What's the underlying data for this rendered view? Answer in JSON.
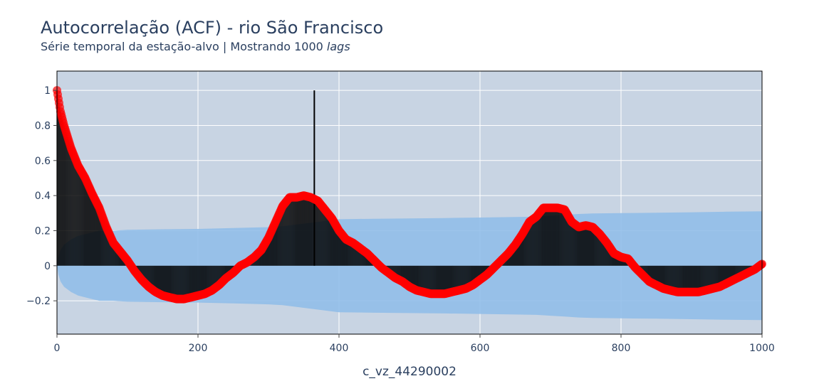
{
  "title": "Autocorrelação (ACF) - rio São Francisco",
  "subtitle_main": "Série temporal da estação-alvo | Mostrando 1000 ",
  "subtitle_italic": "lags",
  "chart_data": {
    "type": "line",
    "title": "Autocorrelação (ACF) - rio São Francisco",
    "subtitle": "Série temporal da estação-alvo | Mostrando 1000 lags",
    "xlabel": "c_vz_44290002",
    "ylabel": "",
    "xlim": [
      0,
      1000
    ],
    "ylim": [
      -0.39,
      1.11
    ],
    "grid": true,
    "legend": "none",
    "x_ticks": [
      0,
      200,
      400,
      600,
      800,
      1000
    ],
    "x_tick_labels": [
      "0",
      "200",
      "400",
      "600",
      "800",
      "1000"
    ],
    "y_ticks": [
      -0.2,
      0,
      0.2,
      0.4,
      0.6,
      0.8,
      1
    ],
    "y_tick_labels": [
      "−0.2",
      "0",
      "0.2",
      "0.4",
      "0.6",
      "0.8",
      "1"
    ],
    "colors": {
      "plot_bg": "#c8d4e3",
      "grid": "#ffffff",
      "acf_points": "#ff0000",
      "stems": "#000000",
      "confidence_band": "#8fbde8",
      "text": "#2a3f5f"
    },
    "series": [
      {
        "kind": "acf",
        "x": [
          0,
          5,
          10,
          20,
          30,
          40,
          50,
          60,
          70,
          80,
          90,
          100,
          110,
          120,
          130,
          140,
          150,
          160,
          170,
          180,
          190,
          200,
          210,
          220,
          230,
          240,
          250,
          260,
          270,
          280,
          290,
          300,
          310,
          320,
          330,
          340,
          350,
          360,
          370,
          380,
          390,
          400,
          410,
          420,
          430,
          440,
          450,
          460,
          470,
          480,
          490,
          500,
          510,
          520,
          530,
          540,
          550,
          560,
          570,
          580,
          590,
          600,
          610,
          620,
          630,
          640,
          650,
          660,
          670,
          680,
          690,
          700,
          710,
          720,
          730,
          740,
          750,
          760,
          770,
          780,
          790,
          800,
          810,
          820,
          830,
          840,
          850,
          860,
          870,
          880,
          890,
          900,
          910,
          920,
          930,
          940,
          950,
          960,
          970,
          980,
          990,
          1000
        ],
        "y": [
          1.0,
          0.88,
          0.8,
          0.67,
          0.57,
          0.5,
          0.41,
          0.33,
          0.22,
          0.13,
          0.08,
          0.03,
          -0.03,
          -0.08,
          -0.12,
          -0.15,
          -0.17,
          -0.18,
          -0.19,
          -0.19,
          -0.18,
          -0.17,
          -0.16,
          -0.14,
          -0.11,
          -0.07,
          -0.04,
          0.0,
          0.02,
          0.05,
          0.09,
          0.16,
          0.25,
          0.34,
          0.39,
          0.39,
          0.4,
          0.39,
          0.37,
          0.32,
          0.27,
          0.2,
          0.15,
          0.13,
          0.1,
          0.07,
          0.03,
          -0.01,
          -0.04,
          -0.07,
          -0.09,
          -0.12,
          -0.14,
          -0.15,
          -0.16,
          -0.16,
          -0.16,
          -0.15,
          -0.14,
          -0.13,
          -0.11,
          -0.08,
          -0.05,
          -0.01,
          0.03,
          0.07,
          0.12,
          0.18,
          0.25,
          0.28,
          0.33,
          0.33,
          0.33,
          0.32,
          0.25,
          0.22,
          0.23,
          0.22,
          0.18,
          0.13,
          0.07,
          0.05,
          0.04,
          -0.01,
          -0.05,
          -0.09,
          -0.11,
          -0.13,
          -0.14,
          -0.15,
          -0.15,
          -0.15,
          -0.15,
          -0.14,
          -0.13,
          -0.12,
          -0.1,
          -0.08,
          -0.06,
          -0.04,
          -0.02,
          0.01
        ]
      },
      {
        "kind": "confidence_upper",
        "x": [
          0,
          2,
          5,
          10,
          20,
          30,
          40,
          50,
          60,
          70,
          80,
          100,
          150,
          200,
          250,
          300,
          320,
          340,
          360,
          380,
          400,
          450,
          500,
          550,
          600,
          650,
          680,
          700,
          720,
          740,
          760,
          800,
          850,
          900,
          950,
          1000
        ],
        "y": [
          0.0,
          0.05,
          0.09,
          0.12,
          0.15,
          0.17,
          0.18,
          0.19,
          0.2,
          0.2,
          0.2,
          0.205,
          0.208,
          0.21,
          0.215,
          0.22,
          0.225,
          0.235,
          0.245,
          0.255,
          0.265,
          0.268,
          0.27,
          0.272,
          0.275,
          0.278,
          0.28,
          0.285,
          0.29,
          0.295,
          0.298,
          0.3,
          0.302,
          0.305,
          0.308,
          0.31
        ]
      },
      {
        "kind": "confidence_lower",
        "x": [
          0,
          2,
          5,
          10,
          20,
          30,
          40,
          50,
          60,
          70,
          80,
          100,
          150,
          200,
          250,
          300,
          320,
          340,
          360,
          380,
          400,
          450,
          500,
          550,
          600,
          650,
          680,
          700,
          720,
          740,
          760,
          800,
          850,
          900,
          950,
          1000
        ],
        "y": [
          0.0,
          -0.05,
          -0.09,
          -0.12,
          -0.15,
          -0.17,
          -0.18,
          -0.19,
          -0.2,
          -0.2,
          -0.2,
          -0.205,
          -0.208,
          -0.21,
          -0.215,
          -0.22,
          -0.225,
          -0.235,
          -0.245,
          -0.255,
          -0.265,
          -0.268,
          -0.27,
          -0.272,
          -0.275,
          -0.278,
          -0.28,
          -0.285,
          -0.29,
          -0.295,
          -0.298,
          -0.3,
          -0.302,
          -0.305,
          -0.308,
          -0.31
        ]
      },
      {
        "kind": "marker",
        "x": [
          365
        ],
        "y": [
          1.0
        ]
      }
    ]
  }
}
